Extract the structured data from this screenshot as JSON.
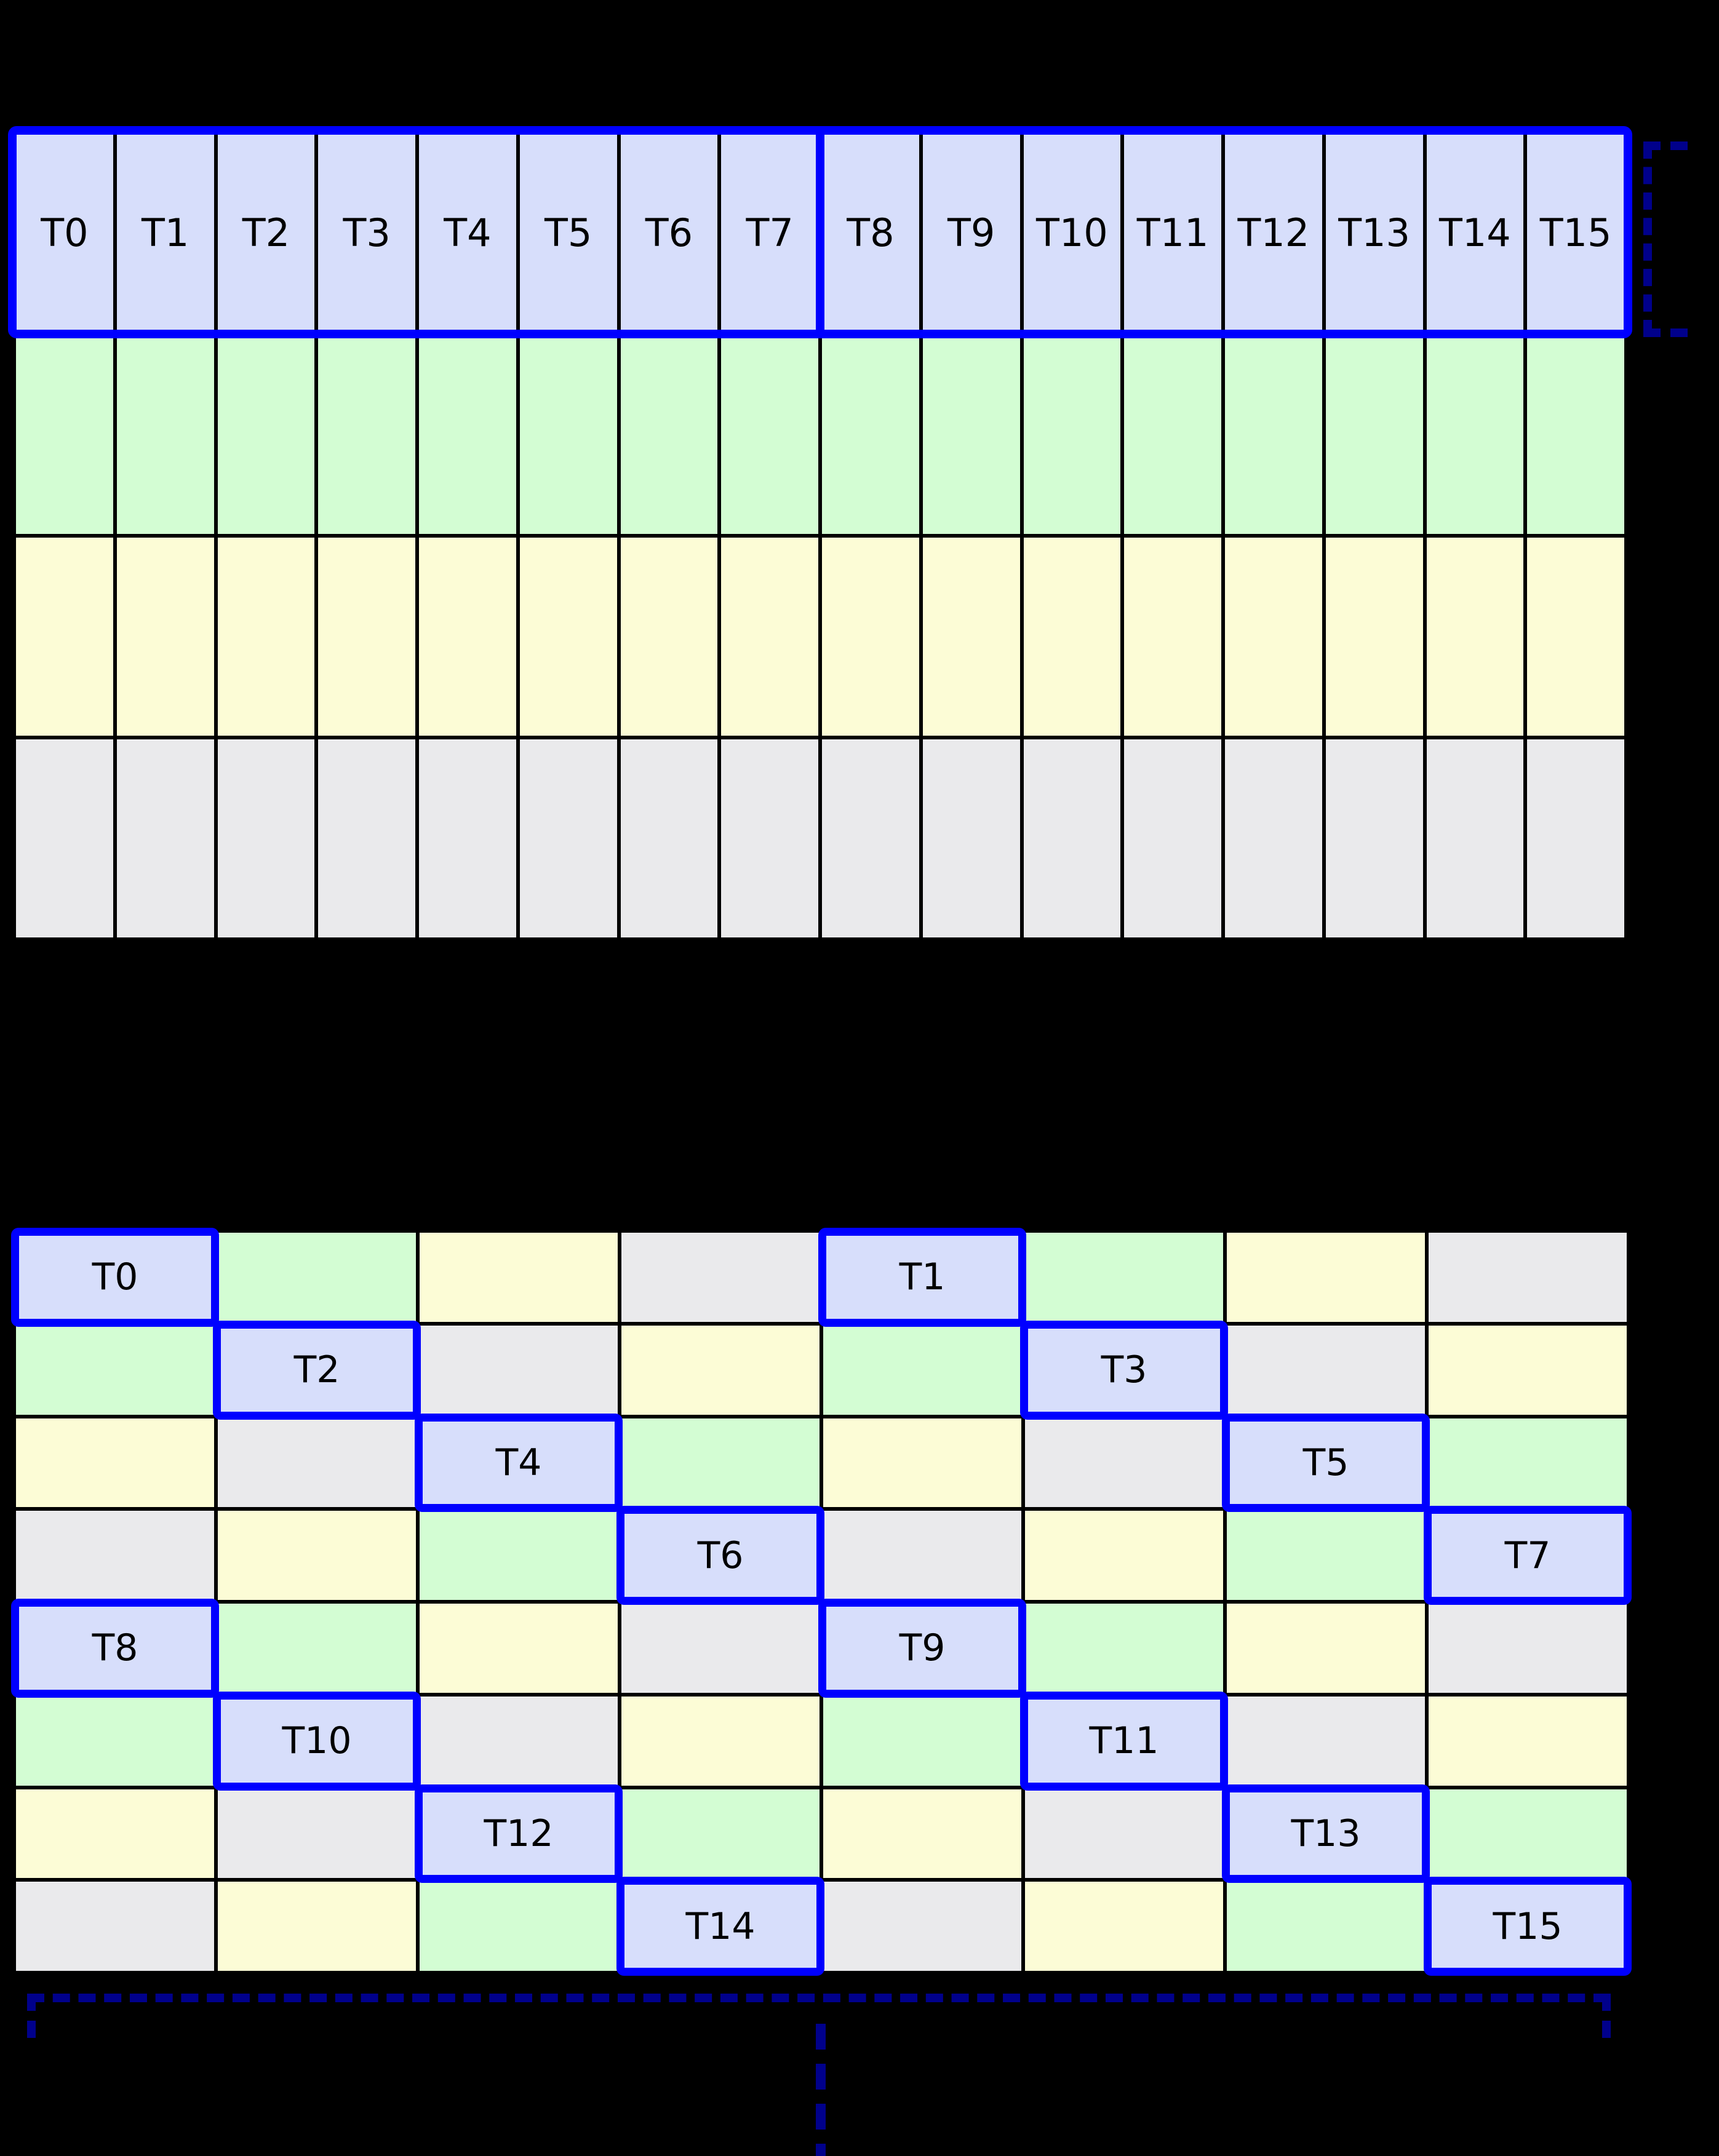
{
  "colors": {
    "background": "#000000",
    "grid_line": "#000000",
    "thread_cell": "#d7defb",
    "bank_green": "#d3fdd3",
    "bank_yellow": "#fcfcd6",
    "bank_gray": "#eaeaec",
    "highlight_border": "#0000ff",
    "bracket": "#00008b",
    "label_text": "#000000"
  },
  "top_grid": {
    "rows": 4,
    "columns": 16,
    "thread_labels": [
      "T0",
      "T1",
      "T2",
      "T3",
      "T4",
      "T5",
      "T6",
      "T7",
      "T8",
      "T9",
      "T10",
      "T11",
      "T12",
      "T13",
      "T14",
      "T15"
    ],
    "row_fill_keys": [
      "thread_cell",
      "bank_green",
      "bank_yellow",
      "bank_gray"
    ],
    "split_after_column": 8
  },
  "bottom_grid": {
    "rows": 8,
    "columns": 8,
    "color_cycle_keys": [
      "thread_cell",
      "bank_green",
      "bank_yellow",
      "bank_gray"
    ],
    "color_rule": "xor_row_col_mod4",
    "thread_cells": [
      {
        "label": "T0",
        "row": 0,
        "col": 0
      },
      {
        "label": "T1",
        "row": 0,
        "col": 4
      },
      {
        "label": "T2",
        "row": 1,
        "col": 1
      },
      {
        "label": "T3",
        "row": 1,
        "col": 5
      },
      {
        "label": "T4",
        "row": 2,
        "col": 2
      },
      {
        "label": "T5",
        "row": 2,
        "col": 6
      },
      {
        "label": "T6",
        "row": 3,
        "col": 3
      },
      {
        "label": "T7",
        "row": 3,
        "col": 7
      },
      {
        "label": "T8",
        "row": 4,
        "col": 0
      },
      {
        "label": "T9",
        "row": 4,
        "col": 4
      },
      {
        "label": "T10",
        "row": 5,
        "col": 1
      },
      {
        "label": "T11",
        "row": 5,
        "col": 5
      },
      {
        "label": "T12",
        "row": 6,
        "col": 2
      },
      {
        "label": "T13",
        "row": 6,
        "col": 6
      },
      {
        "label": "T14",
        "row": 7,
        "col": 3
      },
      {
        "label": "T15",
        "row": 7,
        "col": 7
      }
    ]
  },
  "icons": {
    "row_extent_bracket": "dashed-bracket-opening-right",
    "grid_width_bracket": "dashed-bracket-opening-down",
    "continuation_dots": "vertical-dashed-ellipsis"
  }
}
